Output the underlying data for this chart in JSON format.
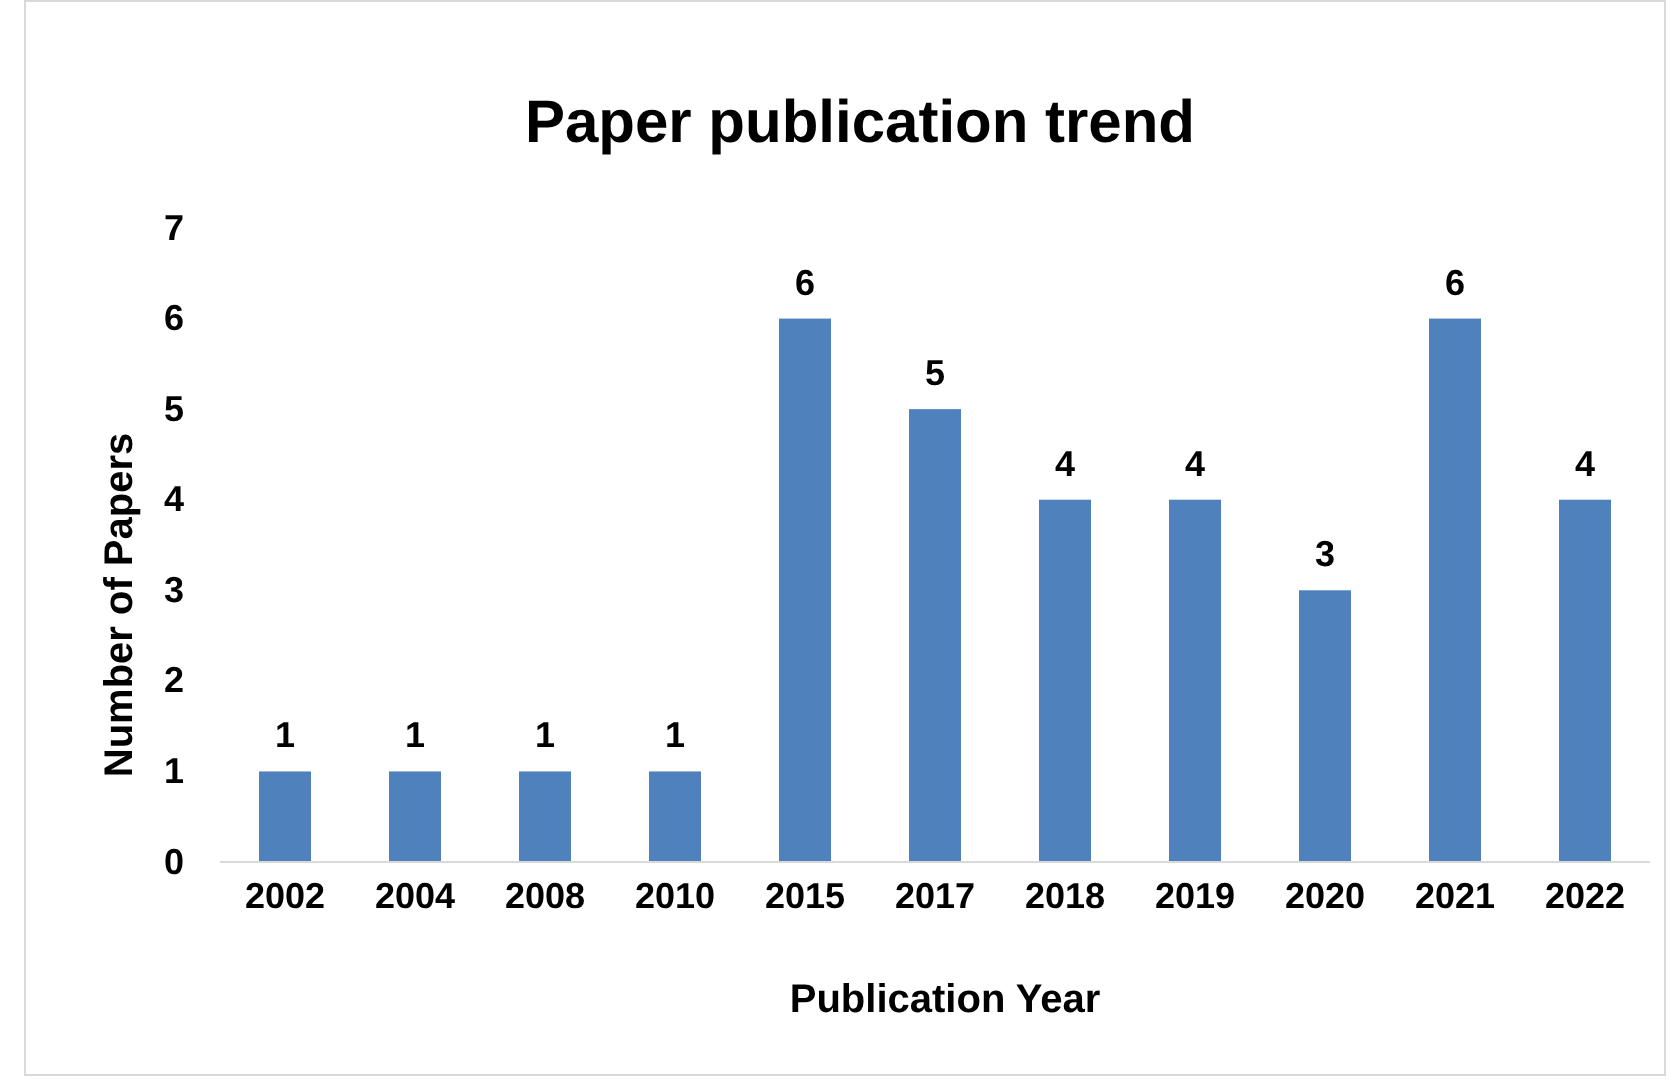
{
  "chart_data": {
    "type": "bar",
    "title": "Paper publication trend",
    "xlabel": "Publication Year",
    "ylabel": "Number of Papers",
    "categories": [
      "2002",
      "2004",
      "2008",
      "2010",
      "2015",
      "2017",
      "2018",
      "2019",
      "2020",
      "2021",
      "2022"
    ],
    "values": [
      1,
      1,
      1,
      1,
      6,
      5,
      4,
      4,
      3,
      6,
      4
    ],
    "color": "#4f81bd",
    "ylim": [
      0,
      7
    ],
    "yticks": [
      0,
      1,
      2,
      3,
      4,
      5,
      6,
      7
    ],
    "grid": false,
    "data_labels": true
  }
}
